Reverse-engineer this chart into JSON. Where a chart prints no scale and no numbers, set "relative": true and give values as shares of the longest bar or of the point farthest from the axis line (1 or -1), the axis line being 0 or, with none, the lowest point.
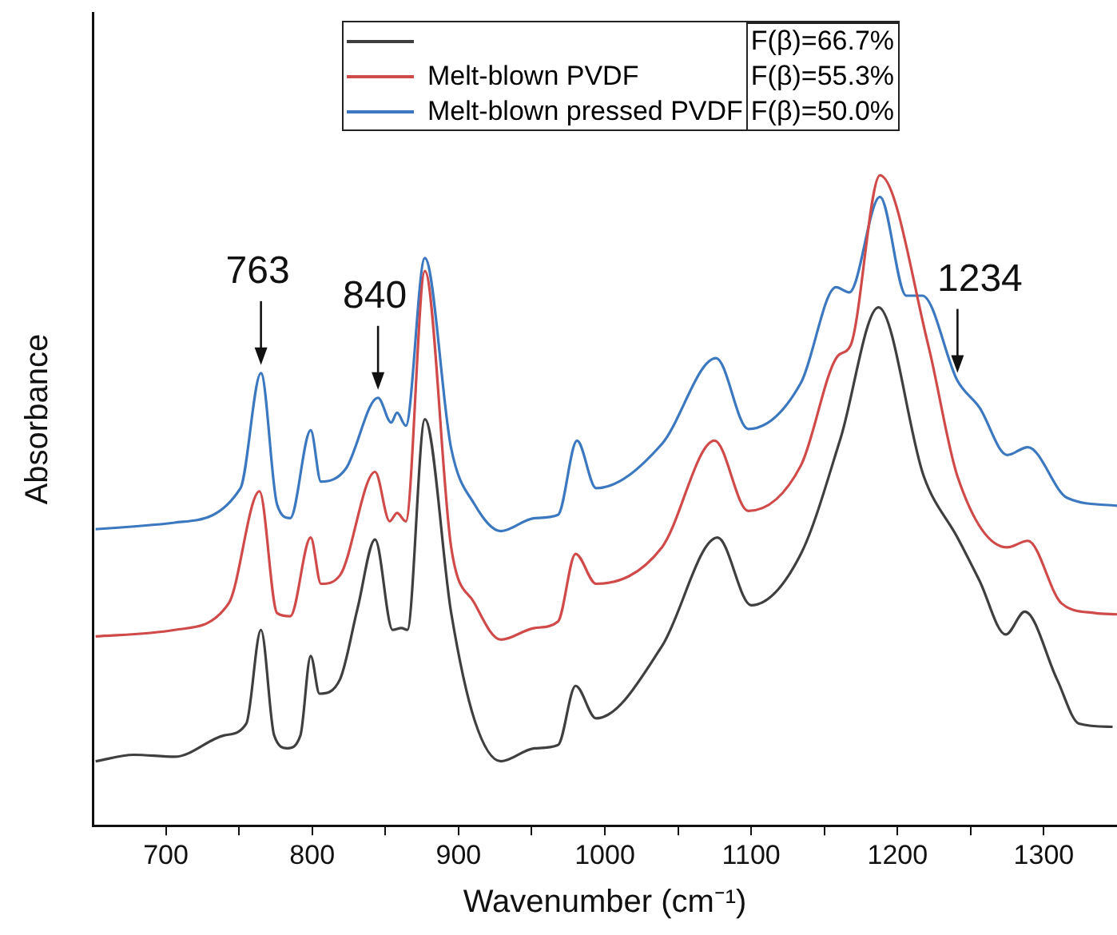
{
  "chart_data": {
    "type": "line",
    "xlabel": "Wavenumber (cm⁻¹)",
    "ylabel": "Absorbance",
    "relative": true,
    "legend": "top",
    "grid": false,
    "marker": "none",
    "line_style": "solid",
    "xlim": [
      650,
      1350
    ],
    "xticks": [
      700,
      {
        "value": 750,
        "label": null
      },
      800,
      {
        "value": 850,
        "label": null
      },
      900,
      {
        "value": 950,
        "label": null
      },
      1000,
      {
        "value": 1050,
        "label": null
      },
      1100,
      {
        "value": 1150,
        "label": null
      },
      1200,
      {
        "value": 1250,
        "label": null
      },
      1300
    ],
    "series": [
      {
        "color": "#3f3f3f",
        "x": [
          652,
          678,
          706,
          740,
          755,
          765,
          774,
          783,
          792,
          799,
          805,
          819,
          831,
          843,
          855,
          861,
          865,
          877,
          895,
          911,
          929,
          952,
          968,
          980,
          994,
          1039,
          1077,
          1100,
          1134,
          1161,
          1187,
          1218,
          1241,
          1256,
          1274,
          1287,
          1309,
          1324,
          1347
        ],
        "values": [
          0.099,
          0.109,
          0.106,
          0.139,
          0.157,
          0.301,
          0.139,
          0.119,
          0.139,
          0.261,
          0.203,
          0.225,
          0.334,
          0.44,
          0.301,
          0.304,
          0.301,
          0.625,
          0.327,
          0.162,
          0.099,
          0.119,
          0.124,
          0.215,
          0.165,
          0.276,
          0.443,
          0.339,
          0.418,
          0.595,
          0.797,
          0.537,
          0.443,
          0.377,
          0.294,
          0.329,
          0.225,
          0.157,
          0.152
        ]
      },
      {
        "name": "Melt-blown PVDF",
        "color": "#d04a4a",
        "x": [
          652,
          706,
          743,
          764,
          776,
          785,
          799,
          806,
          819,
          843,
          853,
          858,
          864,
          877,
          895,
          911,
          929,
          952,
          968,
          980,
          994,
          1039,
          1075,
          1098,
          1134,
          1159,
          1168,
          1188,
          1221,
          1241,
          1275,
          1289,
          1312,
          1335,
          1350
        ],
        "values": [
          0.291,
          0.301,
          0.342,
          0.514,
          0.327,
          0.322,
          0.443,
          0.372,
          0.385,
          0.544,
          0.468,
          0.481,
          0.468,
          0.853,
          0.428,
          0.342,
          0.286,
          0.304,
          0.314,
          0.418,
          0.372,
          0.428,
          0.592,
          0.484,
          0.554,
          0.722,
          0.739,
          1,
          0.739,
          0.537,
          0.428,
          0.438,
          0.342,
          0.327,
          0.325
        ]
      },
      {
        "name": "Melt-blown pressed PVDF",
        "color": "#3b78c0",
        "x": [
          652,
          706,
          751,
          765,
          776,
          785,
          799,
          806,
          823,
          845,
          854,
          858,
          864,
          877,
          895,
          911,
          929,
          952,
          968,
          981,
          994,
          1039,
          1076,
          1098,
          1134,
          1158,
          1167,
          1188,
          1206,
          1217,
          1241,
          1256,
          1275,
          1289,
          1316,
          1350
        ],
        "values": [
          0.456,
          0.466,
          0.519,
          0.696,
          0.494,
          0.473,
          0.608,
          0.529,
          0.549,
          0.658,
          0.62,
          0.635,
          0.615,
          0.873,
          0.58,
          0.494,
          0.453,
          0.473,
          0.478,
          0.592,
          0.519,
          0.587,
          0.719,
          0.61,
          0.681,
          0.828,
          0.82,
          0.967,
          0.815,
          0.815,
          0.684,
          0.643,
          0.57,
          0.582,
          0.504,
          0.492
        ]
      }
    ],
    "annotations": [
      "F(β)=66.7%",
      "F(β)=55.3%",
      "F(β)=50.0%",
      {
        "text": "763",
        "x": 765,
        "y": 0.696
      },
      {
        "text": "840",
        "x": 845,
        "y": 0.658
      },
      {
        "text": "1234",
        "x": 1241,
        "y": 0.684
      }
    ]
  }
}
